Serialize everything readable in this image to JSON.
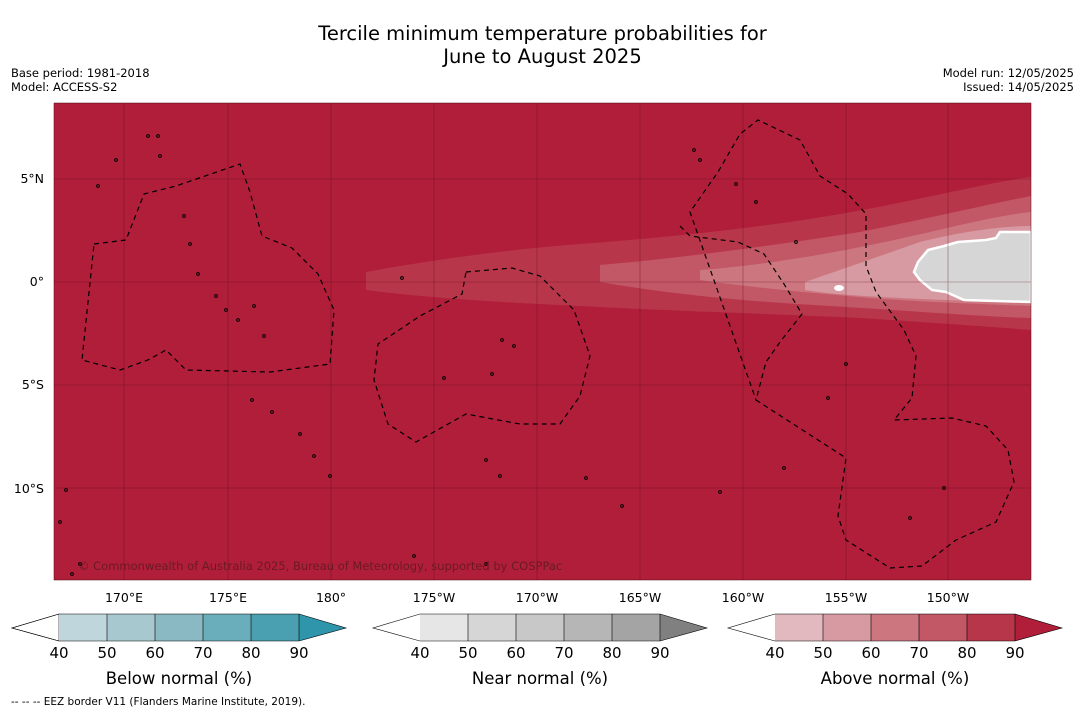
{
  "title_line1": "Tercile minimum temperature probabilities for",
  "title_line2": "June to August 2025",
  "meta_left": [
    "Base period: 1981-2018",
    "Model: ACCESS-S2"
  ],
  "meta_right": [
    "Model run: 12/05/2025",
    "Issued: 14/05/2025"
  ],
  "map": {
    "background_color": "#b01e3a",
    "lat_labels": [
      "5°N",
      "0°",
      "5°S",
      "10°S"
    ],
    "lon_labels": [
      "170°E",
      "175°E",
      "180°",
      "175°W",
      "170°W",
      "165°W",
      "160°W",
      "155°W",
      "150°W"
    ],
    "copyright": "© Commonwealth of Australia 2025, Bureau of Meteorology, supported by COSPPac"
  },
  "legends": [
    {
      "name": "below",
      "label": "Below normal (%)",
      "ticks": [
        "40",
        "50",
        "60",
        "70",
        "80",
        "90"
      ],
      "colors": [
        "#ffffff",
        "#c0d6dd",
        "#a7c8cf",
        "#8ab8c3",
        "#6aaebb",
        "#4aa0b0",
        "#2e95aa"
      ]
    },
    {
      "name": "near",
      "label": "Near normal (%)",
      "ticks": [
        "40",
        "50",
        "60",
        "70",
        "80",
        "90"
      ],
      "colors": [
        "#ffffff",
        "#e6e6e6",
        "#d6d6d6",
        "#c8c8c8",
        "#b6b6b6",
        "#a4a4a4",
        "#808080"
      ]
    },
    {
      "name": "above",
      "label": "Above normal (%)",
      "ticks": [
        "40",
        "50",
        "60",
        "70",
        "80",
        "90"
      ],
      "colors": [
        "#ffffff",
        "#e1b9bf",
        "#d89aa2",
        "#cc7680",
        "#c25766",
        "#b8364a",
        "#b01e3a"
      ]
    }
  ],
  "footnote": "--  --  -- EEZ border V11 (Flanders Marine Institute, 2019)."
}
